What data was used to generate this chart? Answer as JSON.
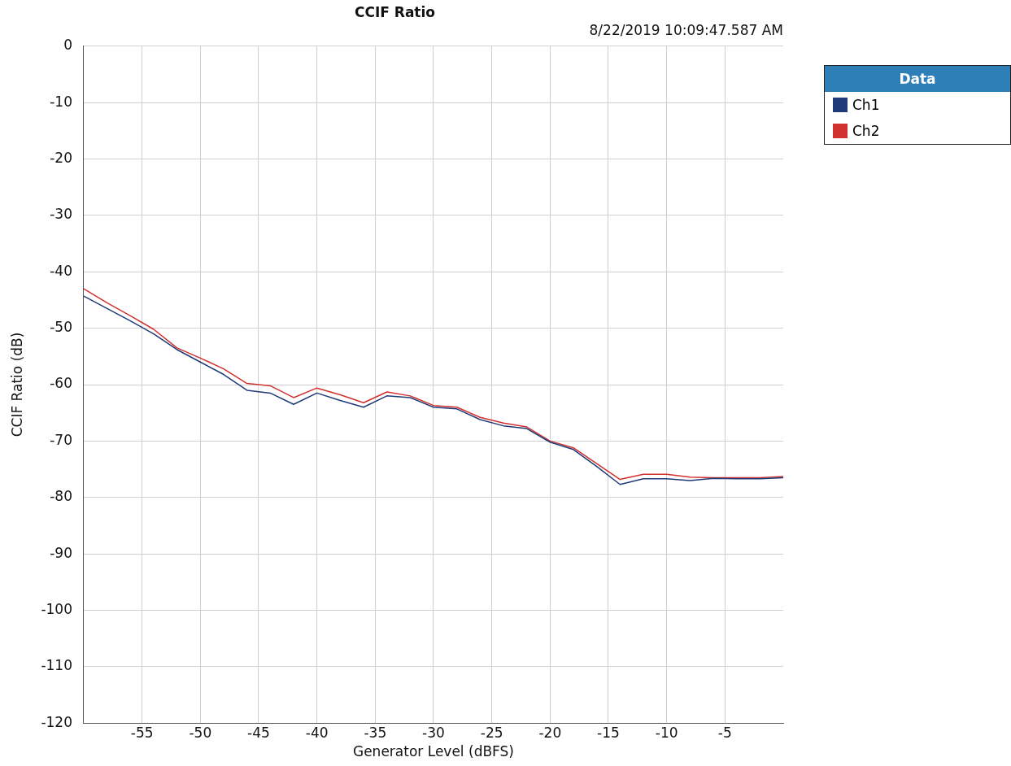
{
  "chart_data": {
    "type": "line",
    "title": "CCIF Ratio",
    "subtitle": "8/22/2019 10:09:47.587 AM",
    "xlabel": "Generator Level (dBFS)",
    "ylabel": "CCIF Ratio (dB)",
    "legend_title": "Data",
    "legend": "right",
    "grid": true,
    "marker": "none",
    "line_style": "solid",
    "x": [
      -60,
      -58,
      -56,
      -54,
      -52,
      -50,
      -48,
      -46,
      -44,
      -42,
      -40,
      -38,
      -36,
      -34,
      -32,
      -30,
      -28,
      -26,
      -24,
      -22,
      -20,
      -18,
      -16,
      -14,
      -12,
      -10,
      -8,
      -6,
      -4,
      -2,
      0
    ],
    "xlim": [
      -60,
      0
    ],
    "xticks": [
      -55,
      -50,
      -45,
      -40,
      -35,
      -30,
      -25,
      -20,
      -15,
      -10,
      -5
    ],
    "ylim": [
      -120,
      0
    ],
    "yticks": [
      0,
      -10,
      -20,
      -30,
      -40,
      -50,
      -60,
      -70,
      -80,
      -90,
      -100,
      -110,
      -120
    ],
    "series": [
      {
        "name": "Ch1",
        "color": "#1f3a78",
        "values": [
          -44.3,
          -46.5,
          -48.7,
          -51,
          -53.8,
          -56,
          -58.2,
          -61,
          -61.5,
          -63.5,
          -61.5,
          -62.8,
          -64,
          -62,
          -62.3,
          -64,
          -64.3,
          -66.2,
          -67.3,
          -67.8,
          -70.2,
          -71.5,
          -74.5,
          -77.7,
          -76.7,
          -76.7,
          -77,
          -76.6,
          -76.7,
          -76.7,
          -76.5
        ]
      },
      {
        "name": "Ch2",
        "color": "#d0312d",
        "values": [
          -43,
          -45.5,
          -47.8,
          -50.2,
          -53.5,
          -55.3,
          -57.2,
          -59.8,
          -60.2,
          -62.3,
          -60.6,
          -61.8,
          -63.2,
          -61.3,
          -62,
          -63.7,
          -64,
          -65.8,
          -66.8,
          -67.5,
          -70,
          -71.2,
          -74,
          -76.8,
          -75.9,
          -75.9,
          -76.4,
          -76.5,
          -76.5,
          -76.5,
          -76.3
        ]
      }
    ]
  }
}
